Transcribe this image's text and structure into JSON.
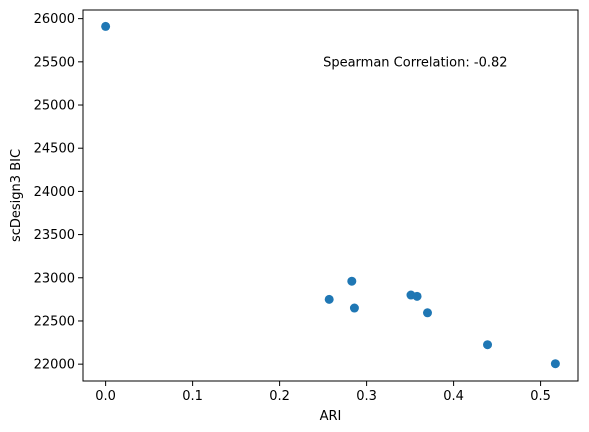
{
  "chart_data": {
    "type": "scatter",
    "title": "",
    "xlabel": "ARI",
    "ylabel": "scDesign3 BIC",
    "xlim": [
      -0.026,
      0.543
    ],
    "ylim": [
      21805,
      26100
    ],
    "xticks": [
      0.0,
      0.1,
      0.2,
      0.3,
      0.4,
      0.5
    ],
    "xtick_labels": [
      "0.0",
      "0.1",
      "0.2",
      "0.3",
      "0.4",
      "0.5"
    ],
    "yticks": [
      22000,
      22500,
      23000,
      23500,
      24000,
      24500,
      25000,
      25500,
      26000
    ],
    "ytick_labels": [
      "22000",
      "22500",
      "23000",
      "23500",
      "24000",
      "24500",
      "25000",
      "25500",
      "26000"
    ],
    "grid": false,
    "legend": false,
    "point_color": "#1f77b4",
    "x": [
      0.0,
      0.257,
      0.283,
      0.286,
      0.351,
      0.358,
      0.37,
      0.439,
      0.517
    ],
    "y": [
      25910,
      22750,
      22960,
      22650,
      22800,
      22785,
      22595,
      22225,
      22005
    ],
    "annotations": [
      {
        "text": "Spearman Correlation: -0.82",
        "x": 0.25,
        "y": 25500
      }
    ]
  }
}
